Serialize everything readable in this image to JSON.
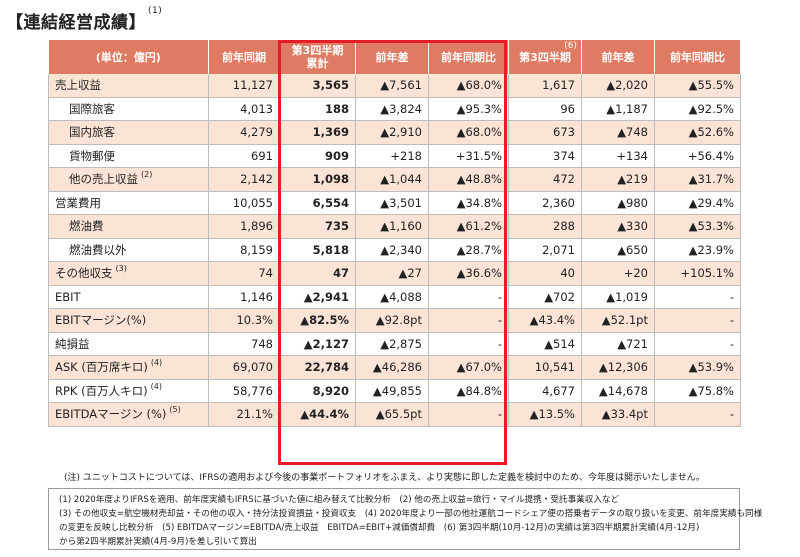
{
  "title": {
    "text": "【連結経営成績】",
    "footnote": "(1)"
  },
  "header": {
    "unit": "(単位：億円)",
    "columns": [
      "前年同期",
      "第3四半期\n累計",
      "前年差",
      "前年同期比",
      "第3四半期",
      "前年差",
      "前年同期比"
    ],
    "q3_footnote": "(6)"
  },
  "rows": [
    {
      "label": "売上収益",
      "fn": "",
      "indent": false,
      "cells": [
        "11,127",
        "3,565",
        "▲7,561",
        "▲68.0%",
        "1,617",
        "▲2,020",
        "▲55.5%"
      ]
    },
    {
      "label": "国際旅客",
      "fn": "",
      "indent": true,
      "cells": [
        "4,013",
        "188",
        "▲3,824",
        "▲95.3%",
        "96",
        "▲1,187",
        "▲92.5%"
      ]
    },
    {
      "label": "国内旅客",
      "fn": "",
      "indent": true,
      "cells": [
        "4,279",
        "1,369",
        "▲2,910",
        "▲68.0%",
        "673",
        "▲748",
        "▲52.6%"
      ]
    },
    {
      "label": "貨物郵便",
      "fn": "",
      "indent": true,
      "cells": [
        "691",
        "909",
        "+218",
        "+31.5%",
        "374",
        "+134",
        "+56.4%"
      ]
    },
    {
      "label": "他の売上収益",
      "fn": "(2)",
      "indent": true,
      "cells": [
        "2,142",
        "1,098",
        "▲1,044",
        "▲48.8%",
        "472",
        "▲219",
        "▲31.7%"
      ]
    },
    {
      "label": "営業費用",
      "fn": "",
      "indent": false,
      "cells": [
        "10,055",
        "6,554",
        "▲3,501",
        "▲34.8%",
        "2,360",
        "▲980",
        "▲29.4%"
      ]
    },
    {
      "label": "燃油費",
      "fn": "",
      "indent": true,
      "cells": [
        "1,896",
        "735",
        "▲1,160",
        "▲61.2%",
        "288",
        "▲330",
        "▲53.3%"
      ]
    },
    {
      "label": "燃油費以外",
      "fn": "",
      "indent": true,
      "cells": [
        "8,159",
        "5,818",
        "▲2,340",
        "▲28.7%",
        "2,071",
        "▲650",
        "▲23.9%"
      ]
    },
    {
      "label": "その他収支",
      "fn": "(3)",
      "indent": false,
      "cells": [
        "74",
        "47",
        "▲27",
        "▲36.6%",
        "40",
        "+20",
        "+105.1%"
      ]
    },
    {
      "label": "EBIT",
      "fn": "",
      "indent": false,
      "cells": [
        "1,146",
        "▲2,941",
        "▲4,088",
        "-",
        "▲702",
        "▲1,019",
        "-"
      ]
    },
    {
      "label": "EBITマージン(%)",
      "fn": "",
      "indent": false,
      "cells": [
        "10.3%",
        "▲82.5%",
        "▲92.8pt",
        "-",
        "▲43.4%",
        "▲52.1pt",
        "-"
      ]
    },
    {
      "label": "純損益",
      "fn": "",
      "indent": false,
      "cells": [
        "748",
        "▲2,127",
        "▲2,875",
        "-",
        "▲514",
        "▲721",
        "-"
      ]
    },
    {
      "label": "ASK (百万席キロ)",
      "fn": "(4)",
      "indent": false,
      "cells": [
        "69,070",
        "22,784",
        "▲46,286",
        "▲67.0%",
        "10,541",
        "▲12,306",
        "▲53.9%"
      ]
    },
    {
      "label": "RPK (百万人キロ)",
      "fn": "(4)",
      "indent": false,
      "cells": [
        "58,776",
        "8,920",
        "▲49,855",
        "▲84.8%",
        "4,677",
        "▲14,678",
        "▲75.8%"
      ]
    },
    {
      "label": "EBITDAマージン (%)",
      "fn": "(5)",
      "indent": false,
      "cells": [
        "21.1%",
        "▲44.4%",
        "▲65.5pt",
        "-",
        "▲13.5%",
        "▲33.4pt",
        "-"
      ]
    }
  ],
  "note": "(注) ユニットコストについては、IFRSの適用および今後の事業ポートフォリオをふまえ、より実態に即した定義を検討中のため、今年度は開示いたしません。",
  "footnotes": [
    "(1) 2020年度よりIFRSを適用、前年度実績もIFRSに基づいた値に組み替えて比較分析　(2) 他の売上収益=旅行・マイル提携・受託事業収入など",
    "(3) その他収支=航空機材売却益・その他の収入・持分法投資損益・投資収支　(4) 2020年度より一部の他社運航コードシェア便の搭乗者データの取り扱いを変更、前年度実績も同様",
    "の変更を反映し比較分析　(5) EBITDAマージン=EBITDA/売上収益　EBITDA=EBIT+減価償却費　(6) 第3四半期(10月-12月)の実績は第3四半期累計実績(4月-12月)",
    "から第2四半期累計実績(4月-9月)を差し引いて算出"
  ]
}
